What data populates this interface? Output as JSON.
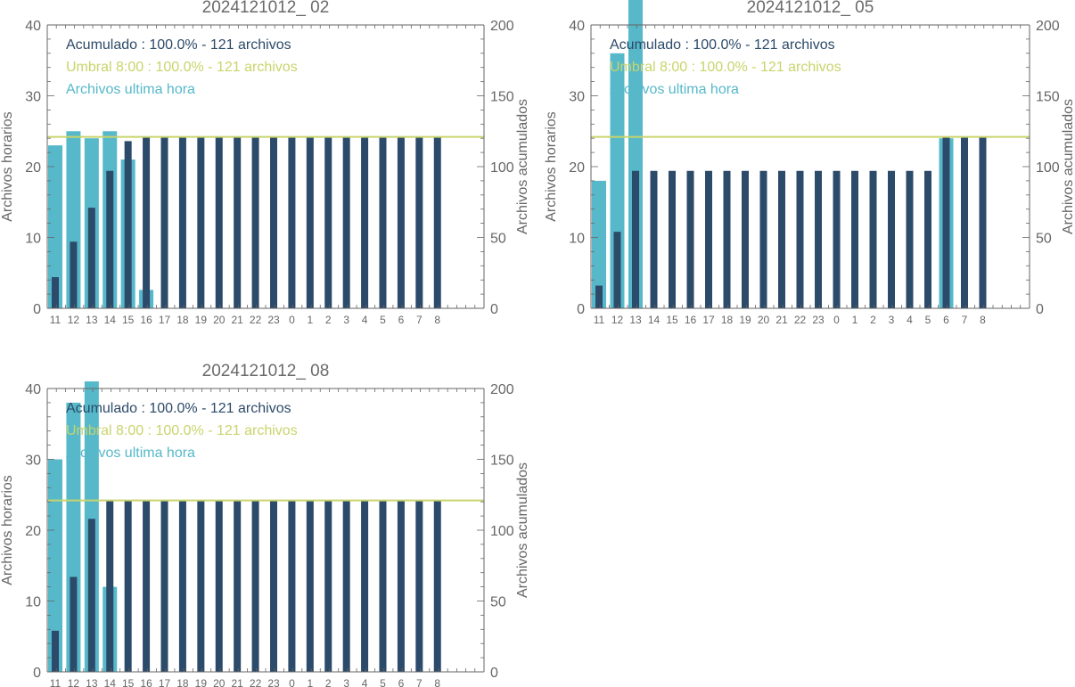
{
  "categories": [
    "11",
    "12",
    "13",
    "14",
    "15",
    "16",
    "17",
    "18",
    "19",
    "20",
    "21",
    "22",
    "23",
    "0",
    "1",
    "2",
    "3",
    "4",
    "5",
    "6",
    "7",
    "8"
  ],
  "colors": {
    "hourly": "#56b8c9",
    "cumulative": "#2c4a69",
    "threshold": "#c9d46b",
    "axis": "#666666"
  },
  "legend": {
    "cumulative": "Acumulado : 100.0% - 121 archivos",
    "threshold": "Umbral 8:00 : 100.0% - 121 archivos",
    "hourly": "Archivos ultima hora"
  },
  "chart_data": [
    {
      "type": "bar",
      "title": "2024121012_ 02",
      "ylabel": "Archivos horarios",
      "ylabel_right": "Archivos acumulados",
      "ylim": [
        0,
        40
      ],
      "ylim_right": [
        0,
        200
      ],
      "yticks": [
        0,
        10,
        20,
        30,
        40
      ],
      "yticks_right": [
        0,
        50,
        100,
        150,
        200
      ],
      "threshold": 121,
      "series": [
        {
          "name": "Archivos ultima hora",
          "axis": "left",
          "values": [
            23,
            25,
            24,
            25,
            21,
            2.6,
            0,
            0,
            0,
            0,
            0,
            0,
            0,
            0,
            0,
            0,
            0,
            0,
            0,
            0,
            0,
            0
          ]
        },
        {
          "name": "Acumulado",
          "axis": "right",
          "values": [
            22,
            47,
            71,
            97,
            118,
            121,
            121,
            121,
            121,
            121,
            121,
            121,
            121,
            121,
            121,
            121,
            121,
            121,
            121,
            121,
            121,
            121
          ]
        }
      ]
    },
    {
      "type": "bar",
      "title": "2024121012_ 05",
      "ylabel": "Archivos horarios",
      "ylabel_right": "Archivos acumulados",
      "ylim": [
        0,
        40
      ],
      "ylim_right": [
        0,
        200
      ],
      "yticks": [
        0,
        10,
        20,
        30,
        40
      ],
      "yticks_right": [
        0,
        50,
        100,
        150,
        200
      ],
      "threshold": 121,
      "series": [
        {
          "name": "Archivos ultima hora",
          "axis": "left",
          "values": [
            18,
            36,
            44,
            0,
            0,
            0,
            0,
            0,
            0,
            0,
            0,
            0,
            0,
            0,
            0,
            0,
            0,
            0,
            0,
            24,
            0,
            0
          ]
        },
        {
          "name": "Acumulado",
          "axis": "right",
          "values": [
            16,
            54,
            97,
            97,
            97,
            97,
            97,
            97,
            97,
            97,
            97,
            97,
            97,
            97,
            97,
            97,
            97,
            97,
            97,
            121,
            121,
            121
          ]
        }
      ]
    },
    {
      "type": "bar",
      "title": "2024121012_ 08",
      "ylabel": "Archivos horarios",
      "ylabel_right": "Archivos acumulados",
      "ylim": [
        0,
        40
      ],
      "ylim_right": [
        0,
        200
      ],
      "yticks": [
        0,
        10,
        20,
        30,
        40
      ],
      "yticks_right": [
        0,
        50,
        100,
        150,
        200
      ],
      "threshold": 121,
      "series": [
        {
          "name": "Archivos ultima hora",
          "axis": "left",
          "values": [
            30,
            38,
            41,
            12,
            0,
            0,
            0,
            0,
            0,
            0,
            0,
            0,
            0,
            0,
            0,
            0,
            0,
            0,
            0,
            0,
            0,
            0
          ]
        },
        {
          "name": "Acumulado",
          "axis": "right",
          "values": [
            29,
            67,
            108,
            121,
            121,
            121,
            121,
            121,
            121,
            121,
            121,
            121,
            121,
            121,
            121,
            121,
            121,
            121,
            121,
            121,
            121,
            121
          ]
        }
      ]
    }
  ]
}
